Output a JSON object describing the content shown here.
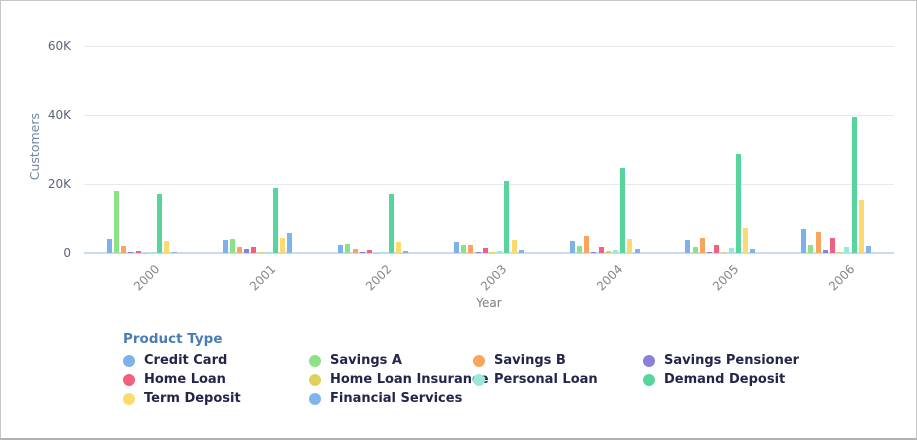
{
  "chart_data": {
    "type": "bar",
    "title": "",
    "xlabel": "Year",
    "ylabel": "Customers",
    "legend_title": "Product Type",
    "categories": [
      "2000",
      "2001",
      "2002",
      "2003",
      "2004",
      "2005",
      "2006"
    ],
    "ylim": [
      0,
      60000
    ],
    "grid": true,
    "legend_position": "bottom",
    "y_ticks": [
      {
        "label": "0",
        "value": 0
      },
      {
        "label": "20K",
        "value": 20000
      },
      {
        "label": "40K",
        "value": 40000
      },
      {
        "label": "60K",
        "value": 60000
      }
    ],
    "series": [
      {
        "name": "Credit Card",
        "color": "#7cb2e8",
        "values": [
          4100,
          3800,
          2300,
          3100,
          3400,
          3700,
          7000
        ]
      },
      {
        "name": "Savings A",
        "color": "#8de287",
        "values": [
          18000,
          4100,
          2700,
          2300,
          1900,
          1700,
          2400
        ]
      },
      {
        "name": "Savings B",
        "color": "#f7a55f",
        "values": [
          1900,
          1700,
          1250,
          2400,
          4900,
          4400,
          6100
        ]
      },
      {
        "name": "Savings Pensioner",
        "color": "#8781db",
        "values": [
          150,
          1250,
          150,
          200,
          200,
          400,
          1000
        ]
      },
      {
        "name": "Home Loan",
        "color": "#f2607f",
        "values": [
          600,
          1650,
          800,
          1400,
          1800,
          2300,
          4300
        ]
      },
      {
        "name": "Home Loan Insurance",
        "color": "#ded25f",
        "values": [
          100,
          150,
          100,
          150,
          500,
          150,
          200
        ]
      },
      {
        "name": "Personal Loan",
        "color": "#98e9db",
        "values": [
          150,
          200,
          150,
          700,
          1000,
          1500,
          1800
        ]
      },
      {
        "name": "Demand Deposit",
        "color": "#58d59c",
        "values": [
          17100,
          18900,
          17200,
          20900,
          24600,
          28600,
          39400
        ]
      },
      {
        "name": "Term Deposit",
        "color": "#fbda6f",
        "values": [
          3600,
          4300,
          3300,
          3700,
          4100,
          7300,
          15400
        ]
      },
      {
        "name": "Financial Services",
        "color": "#7fb5ea",
        "values": [
          200,
          5900,
          500,
          800,
          1100,
          1250,
          2100
        ]
      }
    ],
    "style_colors": {
      "gridline": "#e9e9e9",
      "zero_axis_line": "#ccd9f2",
      "tick_text": "#5a6475",
      "x_tick_text": "#858585",
      "axis_title_y_text": "#6f86a5",
      "axis_title_x_text": "#7d7d7d",
      "legend_title_text": "#4a7cb5",
      "legend_label_text": "#23254b"
    }
  }
}
